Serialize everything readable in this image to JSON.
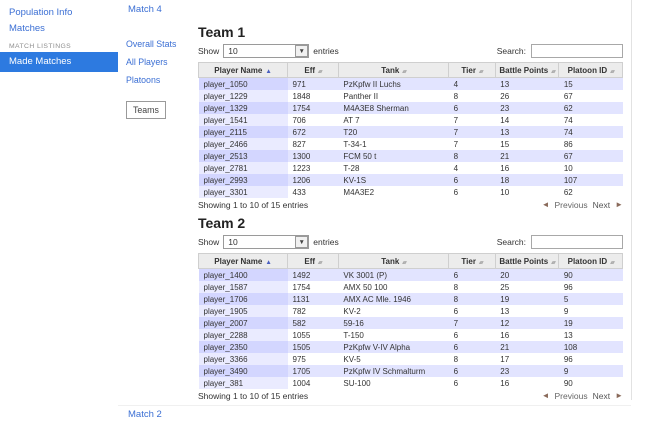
{
  "sidebar": {
    "items": [
      {
        "label": "Population Info"
      },
      {
        "label": "Matches"
      }
    ],
    "section": "MATCH LISTINGS",
    "selected_item": "Made Matches"
  },
  "nav": {
    "top_match": "Match 4",
    "bottom_match": "Match 2"
  },
  "tabs": {
    "items": [
      "Overall Stats",
      "All Players",
      "Platoons",
      "Teams"
    ],
    "selected": "Teams"
  },
  "controls": {
    "show_label": "Show",
    "page_size": "10",
    "entries_label": "entries",
    "search_label": "Search:",
    "dropdown_icon": "▼"
  },
  "columns": [
    "Player Name",
    "Eff",
    "Tank",
    "Tier",
    "Battle Points",
    "Platoon ID"
  ],
  "team1": {
    "title": "Team 1",
    "rows": [
      [
        "player_1050",
        "971",
        "PzKpfw II Luchs",
        "4",
        "13",
        "15"
      ],
      [
        "player_1229",
        "1848",
        "Panther II",
        "8",
        "26",
        "67"
      ],
      [
        "player_1329",
        "1754",
        "M4A3E8 Sherman",
        "6",
        "23",
        "62"
      ],
      [
        "player_1541",
        "706",
        "AT 7",
        "7",
        "14",
        "74"
      ],
      [
        "player_2115",
        "672",
        "T20",
        "7",
        "13",
        "74"
      ],
      [
        "player_2466",
        "827",
        "T-34-1",
        "7",
        "15",
        "86"
      ],
      [
        "player_2513",
        "1300",
        "FCM 50 t",
        "8",
        "21",
        "67"
      ],
      [
        "player_2781",
        "1223",
        "T-28",
        "4",
        "16",
        "10"
      ],
      [
        "player_2993",
        "1206",
        "KV-1S",
        "6",
        "18",
        "107"
      ],
      [
        "player_3301",
        "433",
        "M4A3E2",
        "6",
        "10",
        "62"
      ]
    ],
    "info": "Showing 1 to 10 of 15 entries"
  },
  "team2": {
    "title": "Team 2",
    "rows": [
      [
        "player_1400",
        "1492",
        "VK 3001 (P)",
        "6",
        "20",
        "90"
      ],
      [
        "player_1587",
        "1754",
        "AMX 50 100",
        "8",
        "25",
        "96"
      ],
      [
        "player_1706",
        "1131",
        "AMX AC Mle. 1946",
        "8",
        "19",
        "5"
      ],
      [
        "player_1905",
        "782",
        "KV-2",
        "6",
        "13",
        "9"
      ],
      [
        "player_2007",
        "582",
        "59-16",
        "7",
        "12",
        "19"
      ],
      [
        "player_2288",
        "1055",
        "T-150",
        "6",
        "16",
        "13"
      ],
      [
        "player_2350",
        "1505",
        "PzKpfw V-IV Alpha",
        "6",
        "21",
        "108"
      ],
      [
        "player_3366",
        "975",
        "KV-5",
        "8",
        "17",
        "96"
      ],
      [
        "player_3490",
        "1705",
        "PzKpfw IV Schmalturm",
        "6",
        "23",
        "9"
      ],
      [
        "player_381",
        "1004",
        "SU-100",
        "6",
        "16",
        "90"
      ]
    ],
    "info": "Showing 1 to 10 of 15 entries"
  },
  "pagination": {
    "previous": "Previous",
    "next": "Next",
    "prev_arrow": "◄",
    "next_arrow": "►"
  },
  "colors": {
    "accent": "#2d7ae0",
    "link": "#3b6fd4",
    "row_odd": "#e2e4ff",
    "row_even": "#ffffff",
    "sorted_col_odd": "#d3d6ff",
    "sorted_col_even": "#eaebff"
  }
}
